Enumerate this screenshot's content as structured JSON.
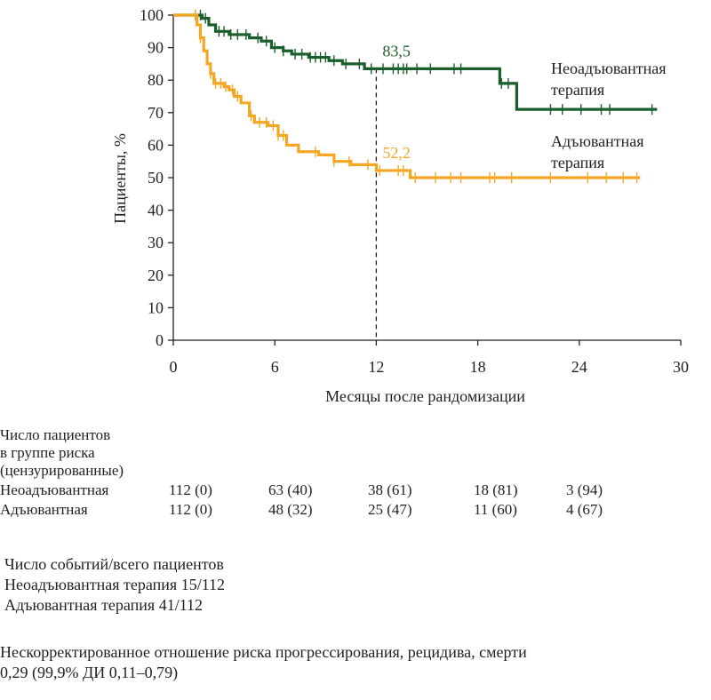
{
  "chart_data": {
    "type": "line",
    "ylabel": "Пациенты, %",
    "xlabel": "Месяцы после рандомизации",
    "xlim": [
      0,
      30
    ],
    "ylim": [
      0,
      100
    ],
    "x_ticks": [
      0,
      6,
      12,
      18,
      24,
      30
    ],
    "y_ticks": [
      0,
      10,
      20,
      30,
      40,
      50,
      60,
      70,
      80,
      90,
      100
    ],
    "grid": false,
    "series": [
      {
        "name": "Неоадъювантная терапия",
        "color": "#1a5e2b",
        "steps": [
          [
            0,
            100
          ],
          [
            1.5,
            100
          ],
          [
            1.7,
            99
          ],
          [
            2.1,
            97
          ],
          [
            2.5,
            95
          ],
          [
            3.3,
            94
          ],
          [
            4.5,
            93
          ],
          [
            5.2,
            92
          ],
          [
            5.8,
            90
          ],
          [
            6.5,
            89
          ],
          [
            7.0,
            88
          ],
          [
            8.0,
            87
          ],
          [
            9.2,
            86
          ],
          [
            10.0,
            85
          ],
          [
            11.3,
            83.5
          ],
          [
            19.3,
            79
          ],
          [
            20.3,
            71
          ],
          [
            28.6,
            71
          ]
        ],
        "censor_x": [
          1.3,
          1.6,
          1.9,
          2.7,
          3.0,
          3.4,
          3.8,
          4.3,
          5.0,
          5.5,
          6.0,
          6.5,
          7.2,
          7.6,
          8.1,
          8.4,
          8.7,
          9.0,
          9.5,
          10.2,
          11.0,
          11.7,
          12.4,
          13.0,
          13.3,
          13.6,
          13.8,
          14.4,
          15.2,
          16.6,
          17.0,
          19.4,
          19.8,
          22.3,
          23.0,
          24.1,
          25.3,
          25.8,
          28.3
        ],
        "annotation": {
          "x": 12,
          "y": 83.5,
          "label": "83,5"
        },
        "legend_lines": [
          "Неоадъювантная",
          "терапия"
        ]
      },
      {
        "name": "Адъювантная терапия",
        "color": "#f5a623",
        "steps": [
          [
            0,
            100
          ],
          [
            1.2,
            100
          ],
          [
            1.4,
            97
          ],
          [
            1.6,
            93
          ],
          [
            1.8,
            89
          ],
          [
            2.0,
            85
          ],
          [
            2.2,
            82
          ],
          [
            2.4,
            79
          ],
          [
            3.0,
            78
          ],
          [
            3.3,
            77
          ],
          [
            3.6,
            75
          ],
          [
            4.0,
            73
          ],
          [
            4.5,
            69
          ],
          [
            4.8,
            67
          ],
          [
            5.6,
            66
          ],
          [
            6.2,
            63
          ],
          [
            6.7,
            60
          ],
          [
            7.4,
            58
          ],
          [
            8.6,
            57
          ],
          [
            9.5,
            55
          ],
          [
            10.5,
            54
          ],
          [
            12.0,
            52.2
          ],
          [
            14.0,
            50
          ],
          [
            27.6,
            50
          ]
        ],
        "censor_x": [
          1.3,
          1.6,
          2.2,
          2.5,
          2.8,
          3.1,
          3.5,
          3.8,
          4.6,
          5.1,
          5.5,
          5.9,
          6.2,
          6.5,
          8.4,
          9.5,
          10.4,
          11.5,
          12.2,
          13.3,
          13.6,
          14.3,
          15.5,
          16.4,
          17.0,
          18.7,
          19.0,
          20.0,
          22.3,
          24.5,
          25.6,
          26.6,
          27.4
        ],
        "annotation": {
          "x": 12,
          "y": 52.2,
          "label": "52,2"
        },
        "legend_lines": [
          "Адъювантная",
          "терапия"
        ]
      }
    ],
    "reference_line": {
      "x": 12,
      "style": "dashed"
    }
  },
  "risk_table": {
    "header_lines": [
      "Число пациентов",
      "в группе риска",
      "(цензурированные)"
    ],
    "rows": [
      {
        "label": "Неоадъювантная",
        "values": [
          "112 (0)",
          "63 (40)",
          "38 (61)",
          "18 (81)",
          "3 (94)"
        ]
      },
      {
        "label": "Адъювантная",
        "values": [
          "112 (0)",
          "48 (32)",
          "25 (47)",
          "11 (60)",
          "4 (67)"
        ]
      }
    ]
  },
  "events": {
    "title": "Число событий/всего пациентов",
    "lines": [
      "Неоадъювантная терапия 15/112",
      "Адъювантная терапия 41/112"
    ]
  },
  "hazard": {
    "line1": "Нескорректированное отношение риска прогрессирования, рецидива, смерти",
    "line2": "0,29 (99,9% ДИ 0,11–0,79)"
  }
}
